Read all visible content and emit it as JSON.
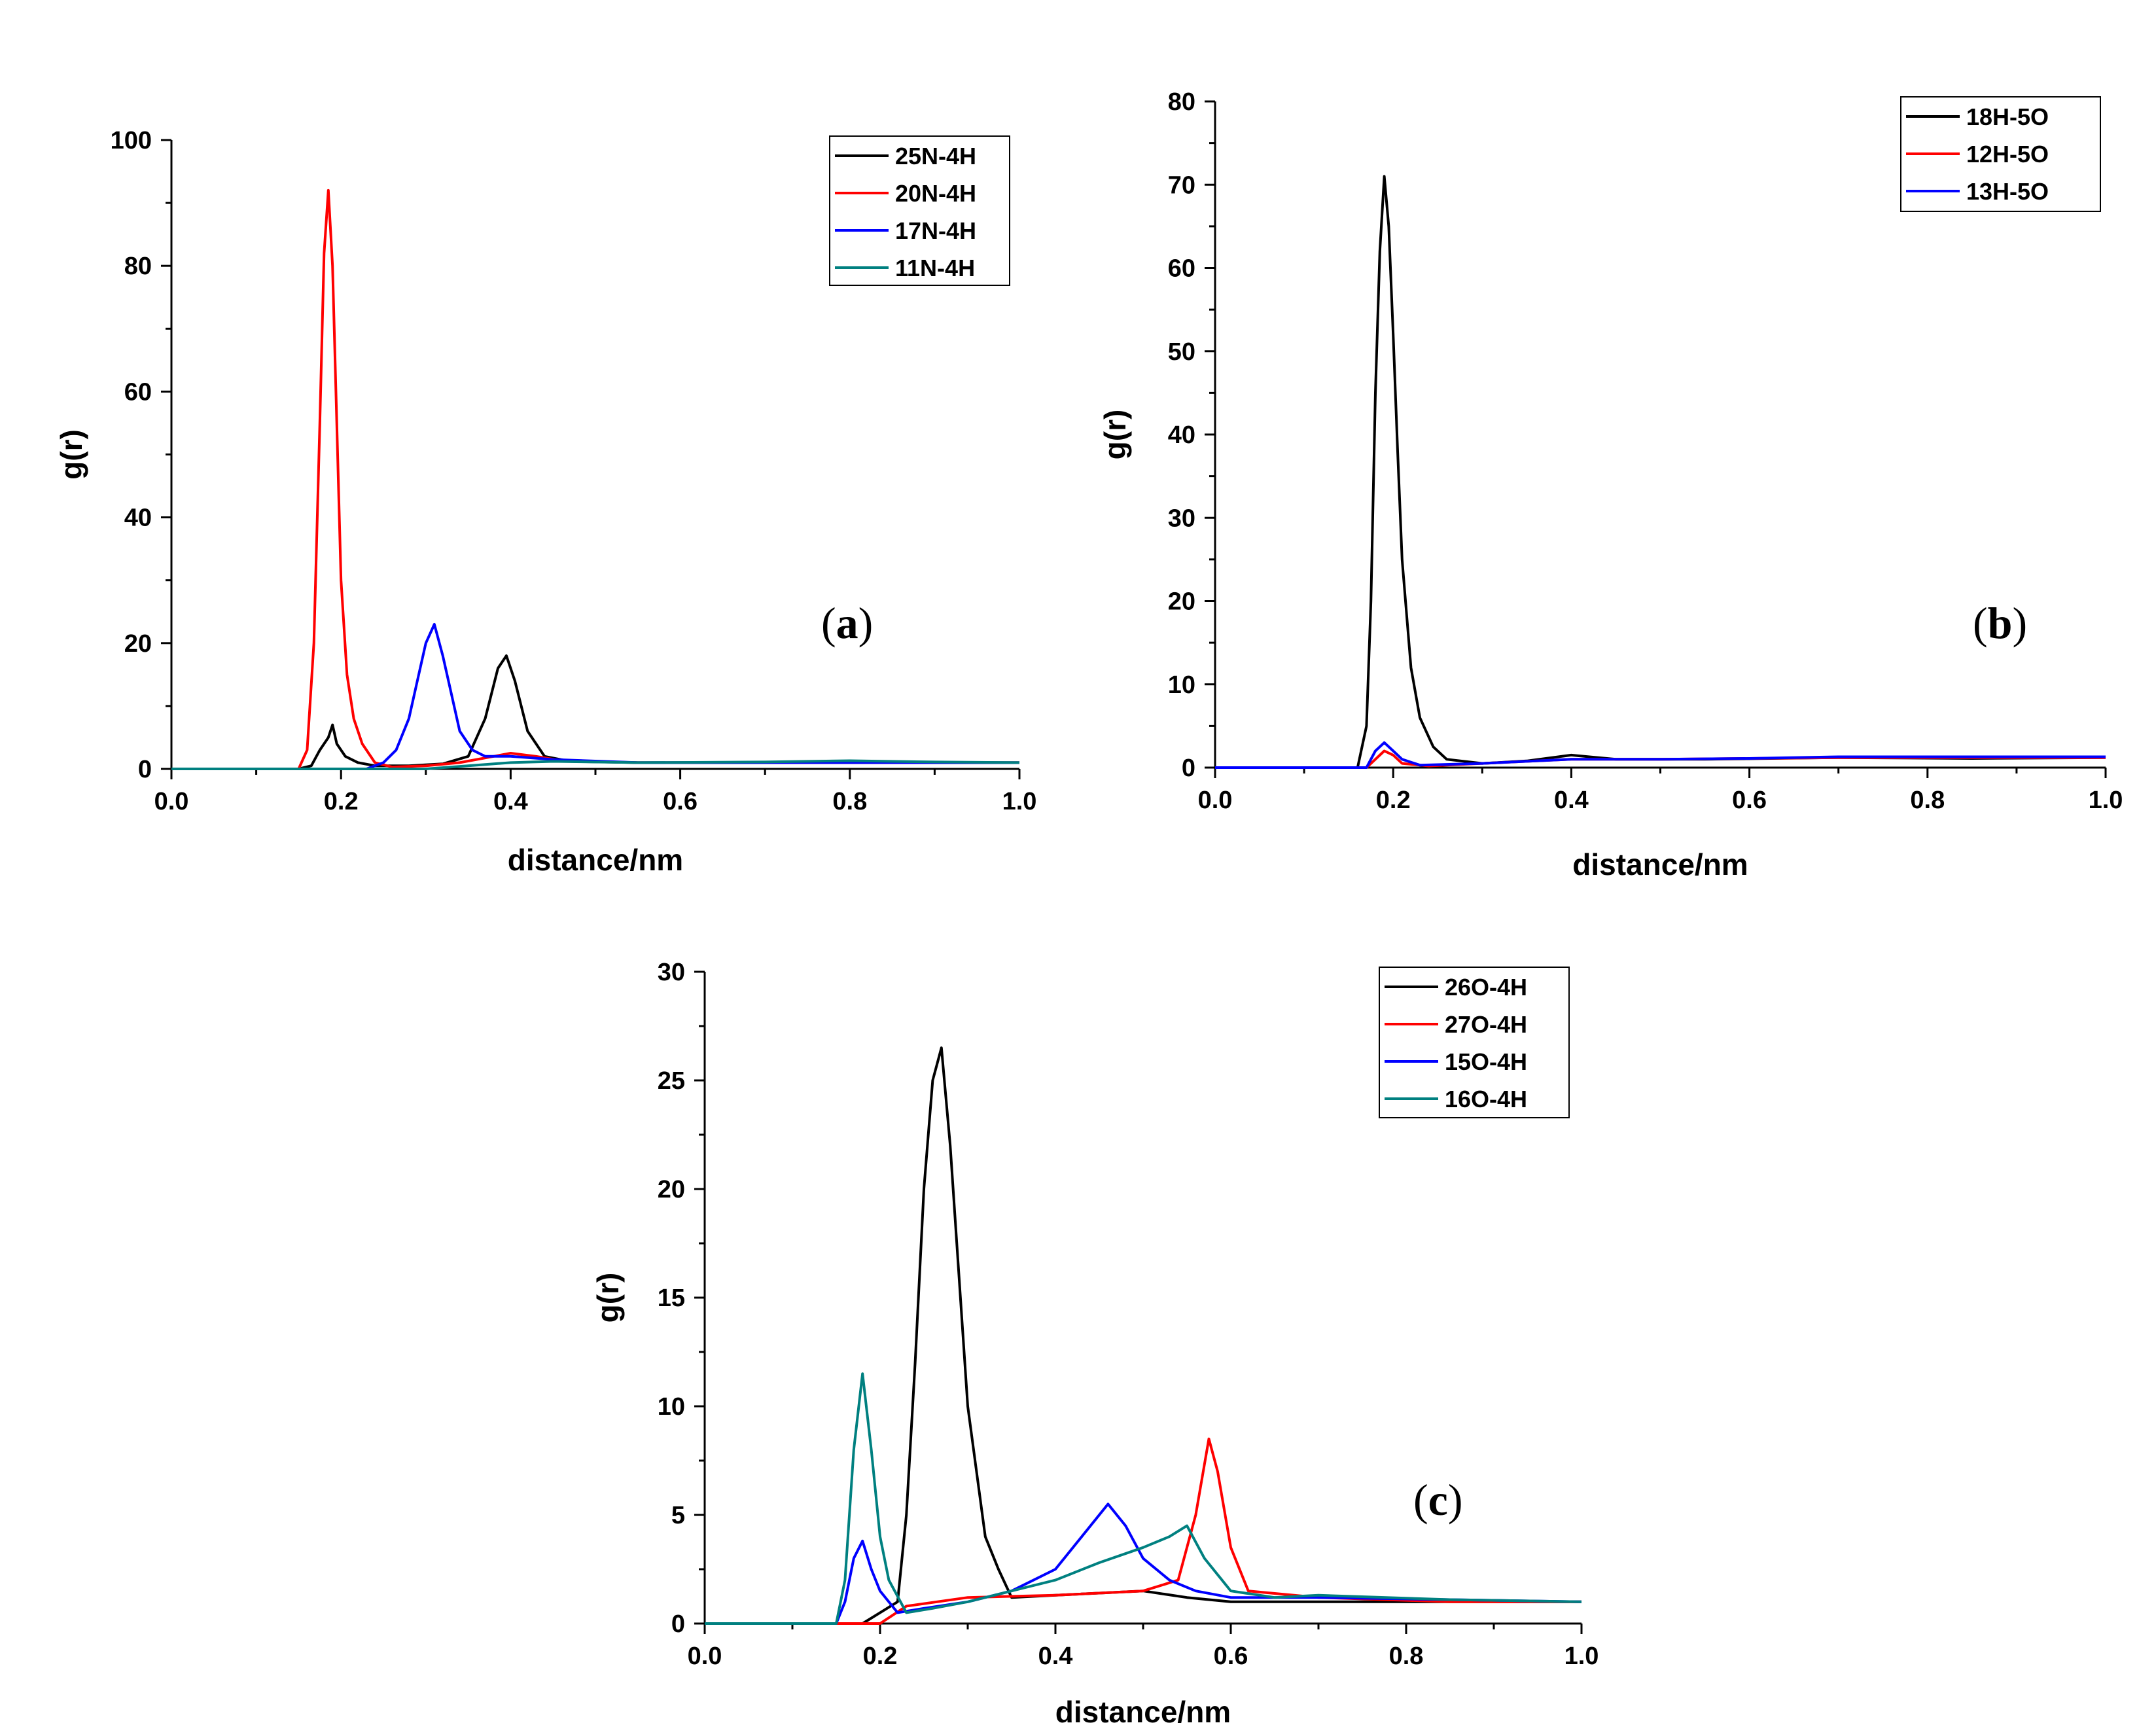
{
  "chart_data": [
    {
      "type": "line",
      "panel_label": "a",
      "xlabel": "distance/nm",
      "ylabel": "g(r)",
      "xlim": [
        0.0,
        1.0
      ],
      "ylim": [
        0,
        100
      ],
      "x_ticks": [
        "0.0",
        "0.2",
        "0.4",
        "0.6",
        "0.8",
        "1.0"
      ],
      "y_ticks": [
        "0",
        "20",
        "40",
        "60",
        "80",
        "100"
      ],
      "legend_position": "top-right",
      "series": [
        {
          "name": "25N-4H",
          "color": "#000000",
          "points": [
            [
              0,
              0
            ],
            [
              0.15,
              0
            ],
            [
              0.165,
              0.5
            ],
            [
              0.175,
              3
            ],
            [
              0.185,
              5
            ],
            [
              0.19,
              7
            ],
            [
              0.195,
              4
            ],
            [
              0.205,
              2
            ],
            [
              0.22,
              1
            ],
            [
              0.24,
              0.5
            ],
            [
              0.28,
              0.5
            ],
            [
              0.32,
              0.8
            ],
            [
              0.35,
              2
            ],
            [
              0.37,
              8
            ],
            [
              0.385,
              16
            ],
            [
              0.395,
              18
            ],
            [
              0.405,
              14
            ],
            [
              0.42,
              6
            ],
            [
              0.44,
              2
            ],
            [
              0.47,
              1.2
            ],
            [
              0.55,
              1
            ],
            [
              0.7,
              1
            ],
            [
              0.85,
              1
            ],
            [
              1.0,
              1
            ]
          ]
        },
        {
          "name": "20N-4H",
          "color": "#ff0000",
          "points": [
            [
              0,
              0
            ],
            [
              0.15,
              0
            ],
            [
              0.16,
              3
            ],
            [
              0.168,
              20
            ],
            [
              0.175,
              55
            ],
            [
              0.18,
              82
            ],
            [
              0.185,
              92
            ],
            [
              0.19,
              80
            ],
            [
              0.195,
              55
            ],
            [
              0.2,
              30
            ],
            [
              0.207,
              15
            ],
            [
              0.215,
              8
            ],
            [
              0.225,
              4
            ],
            [
              0.24,
              1
            ],
            [
              0.26,
              0.3
            ],
            [
              0.3,
              0.5
            ],
            [
              0.34,
              1
            ],
            [
              0.38,
              2
            ],
            [
              0.4,
              2.5
            ],
            [
              0.43,
              2
            ],
            [
              0.46,
              1.3
            ],
            [
              0.55,
              1
            ],
            [
              0.7,
              1
            ],
            [
              0.85,
              1
            ],
            [
              1.0,
              1
            ]
          ]
        },
        {
          "name": "17N-4H",
          "color": "#0000ff",
          "points": [
            [
              0,
              0
            ],
            [
              0.23,
              0
            ],
            [
              0.25,
              1
            ],
            [
              0.265,
              3
            ],
            [
              0.28,
              8
            ],
            [
              0.29,
              14
            ],
            [
              0.3,
              20
            ],
            [
              0.31,
              23
            ],
            [
              0.32,
              18
            ],
            [
              0.33,
              12
            ],
            [
              0.34,
              6
            ],
            [
              0.355,
              3
            ],
            [
              0.37,
              2
            ],
            [
              0.4,
              2
            ],
            [
              0.45,
              1.5
            ],
            [
              0.55,
              1
            ],
            [
              0.7,
              1
            ],
            [
              0.85,
              1
            ],
            [
              1.0,
              1
            ]
          ]
        },
        {
          "name": "11N-4H",
          "color": "#008080",
          "points": [
            [
              0,
              0
            ],
            [
              0.3,
              0
            ],
            [
              0.33,
              0.3
            ],
            [
              0.36,
              0.6
            ],
            [
              0.4,
              1
            ],
            [
              0.45,
              1.2
            ],
            [
              0.55,
              1
            ],
            [
              0.7,
              1.1
            ],
            [
              0.8,
              1.3
            ],
            [
              0.9,
              1.1
            ],
            [
              1.0,
              1
            ]
          ]
        }
      ]
    },
    {
      "type": "line",
      "panel_label": "b",
      "xlabel": "distance/nm",
      "ylabel": "g(r)",
      "xlim": [
        0.0,
        1.0
      ],
      "ylim": [
        0,
        80
      ],
      "x_ticks": [
        "0.0",
        "0.2",
        "0.4",
        "0.6",
        "0.8",
        "1.0"
      ],
      "y_ticks": [
        "0",
        "10",
        "20",
        "30",
        "40",
        "50",
        "60",
        "70",
        "80"
      ],
      "legend_position": "top-right",
      "series": [
        {
          "name": "18H-5O",
          "color": "#000000",
          "points": [
            [
              0,
              0
            ],
            [
              0.16,
              0
            ],
            [
              0.17,
              5
            ],
            [
              0.175,
              20
            ],
            [
              0.18,
              45
            ],
            [
              0.185,
              62
            ],
            [
              0.19,
              71
            ],
            [
              0.195,
              65
            ],
            [
              0.2,
              52
            ],
            [
              0.205,
              38
            ],
            [
              0.21,
              25
            ],
            [
              0.22,
              12
            ],
            [
              0.23,
              6
            ],
            [
              0.245,
              2.5
            ],
            [
              0.26,
              1
            ],
            [
              0.3,
              0.5
            ],
            [
              0.35,
              0.8
            ],
            [
              0.4,
              1.5
            ],
            [
              0.45,
              1
            ],
            [
              0.55,
              1
            ],
            [
              0.7,
              1.2
            ],
            [
              0.85,
              1.1
            ],
            [
              1.0,
              1.2
            ]
          ]
        },
        {
          "name": "12H-5O",
          "color": "#ff0000",
          "points": [
            [
              0,
              0
            ],
            [
              0.17,
              0
            ],
            [
              0.18,
              1
            ],
            [
              0.19,
              2
            ],
            [
              0.2,
              1.5
            ],
            [
              0.21,
              0.5
            ],
            [
              0.24,
              0.2
            ],
            [
              0.3,
              0.5
            ],
            [
              0.4,
              1
            ],
            [
              0.5,
              1
            ],
            [
              0.6,
              1.1
            ],
            [
              0.7,
              1.2
            ],
            [
              0.85,
              1.2
            ],
            [
              1.0,
              1.2
            ]
          ]
        },
        {
          "name": "13H-5O",
          "color": "#0000ff",
          "points": [
            [
              0,
              0
            ],
            [
              0.17,
              0
            ],
            [
              0.18,
              2
            ],
            [
              0.19,
              3
            ],
            [
              0.2,
              2
            ],
            [
              0.21,
              1
            ],
            [
              0.23,
              0.3
            ],
            [
              0.3,
              0.5
            ],
            [
              0.4,
              1
            ],
            [
              0.5,
              1
            ],
            [
              0.6,
              1.1
            ],
            [
              0.7,
              1.3
            ],
            [
              0.85,
              1.3
            ],
            [
              1.0,
              1.3
            ]
          ]
        }
      ]
    },
    {
      "type": "line",
      "panel_label": "c",
      "xlabel": "distance/nm",
      "ylabel": "g(r)",
      "xlim": [
        0.0,
        1.0
      ],
      "ylim": [
        0,
        30
      ],
      "x_ticks": [
        "0.0",
        "0.2",
        "0.4",
        "0.6",
        "0.8",
        "1.0"
      ],
      "y_ticks": [
        "0",
        "5",
        "10",
        "15",
        "20",
        "25",
        "30"
      ],
      "legend_position": "top-right",
      "series": [
        {
          "name": "26O-4H",
          "color": "#000000",
          "points": [
            [
              0,
              0
            ],
            [
              0.18,
              0
            ],
            [
              0.2,
              0.5
            ],
            [
              0.22,
              1
            ],
            [
              0.23,
              5
            ],
            [
              0.24,
              12
            ],
            [
              0.25,
              20
            ],
            [
              0.26,
              25
            ],
            [
              0.27,
              26.5
            ],
            [
              0.28,
              22
            ],
            [
              0.29,
              16
            ],
            [
              0.3,
              10
            ],
            [
              0.31,
              7
            ],
            [
              0.32,
              4
            ],
            [
              0.335,
              2.5
            ],
            [
              0.35,
              1.2
            ],
            [
              0.4,
              1.3
            ],
            [
              0.5,
              1.5
            ],
            [
              0.55,
              1.2
            ],
            [
              0.6,
              1
            ],
            [
              0.7,
              1
            ],
            [
              0.85,
              1
            ],
            [
              1.0,
              1
            ]
          ]
        },
        {
          "name": "27O-4H",
          "color": "#ff0000",
          "points": [
            [
              0,
              0
            ],
            [
              0.2,
              0
            ],
            [
              0.23,
              0.8
            ],
            [
              0.3,
              1.2
            ],
            [
              0.4,
              1.3
            ],
            [
              0.5,
              1.5
            ],
            [
              0.54,
              2
            ],
            [
              0.56,
              5
            ],
            [
              0.575,
              8.5
            ],
            [
              0.585,
              7
            ],
            [
              0.6,
              3.5
            ],
            [
              0.62,
              1.5
            ],
            [
              0.7,
              1.2
            ],
            [
              0.85,
              1
            ],
            [
              1.0,
              1
            ]
          ]
        },
        {
          "name": "15O-4H",
          "color": "#0000ff",
          "points": [
            [
              0,
              0
            ],
            [
              0.15,
              0
            ],
            [
              0.16,
              1
            ],
            [
              0.17,
              3
            ],
            [
              0.18,
              3.8
            ],
            [
              0.19,
              2.5
            ],
            [
              0.2,
              1.5
            ],
            [
              0.22,
              0.5
            ],
            [
              0.25,
              0.7
            ],
            [
              0.3,
              1
            ],
            [
              0.35,
              1.5
            ],
            [
              0.4,
              2.5
            ],
            [
              0.43,
              4
            ],
            [
              0.46,
              5.5
            ],
            [
              0.48,
              4.5
            ],
            [
              0.5,
              3
            ],
            [
              0.53,
              2
            ],
            [
              0.56,
              1.5
            ],
            [
              0.6,
              1.2
            ],
            [
              0.7,
              1.2
            ],
            [
              0.85,
              1.1
            ],
            [
              1.0,
              1
            ]
          ]
        },
        {
          "name": "16O-4H",
          "color": "#008080",
          "points": [
            [
              0,
              0
            ],
            [
              0.15,
              0
            ],
            [
              0.16,
              2
            ],
            [
              0.17,
              8
            ],
            [
              0.18,
              11.5
            ],
            [
              0.19,
              8
            ],
            [
              0.2,
              4
            ],
            [
              0.21,
              2
            ],
            [
              0.23,
              0.5
            ],
            [
              0.26,
              0.7
            ],
            [
              0.3,
              1
            ],
            [
              0.35,
              1.5
            ],
            [
              0.4,
              2
            ],
            [
              0.45,
              2.8
            ],
            [
              0.5,
              3.5
            ],
            [
              0.53,
              4
            ],
            [
              0.55,
              4.5
            ],
            [
              0.57,
              3
            ],
            [
              0.6,
              1.5
            ],
            [
              0.65,
              1.2
            ],
            [
              0.7,
              1.3
            ],
            [
              0.85,
              1.1
            ],
            [
              1.0,
              1
            ]
          ]
        }
      ]
    }
  ]
}
